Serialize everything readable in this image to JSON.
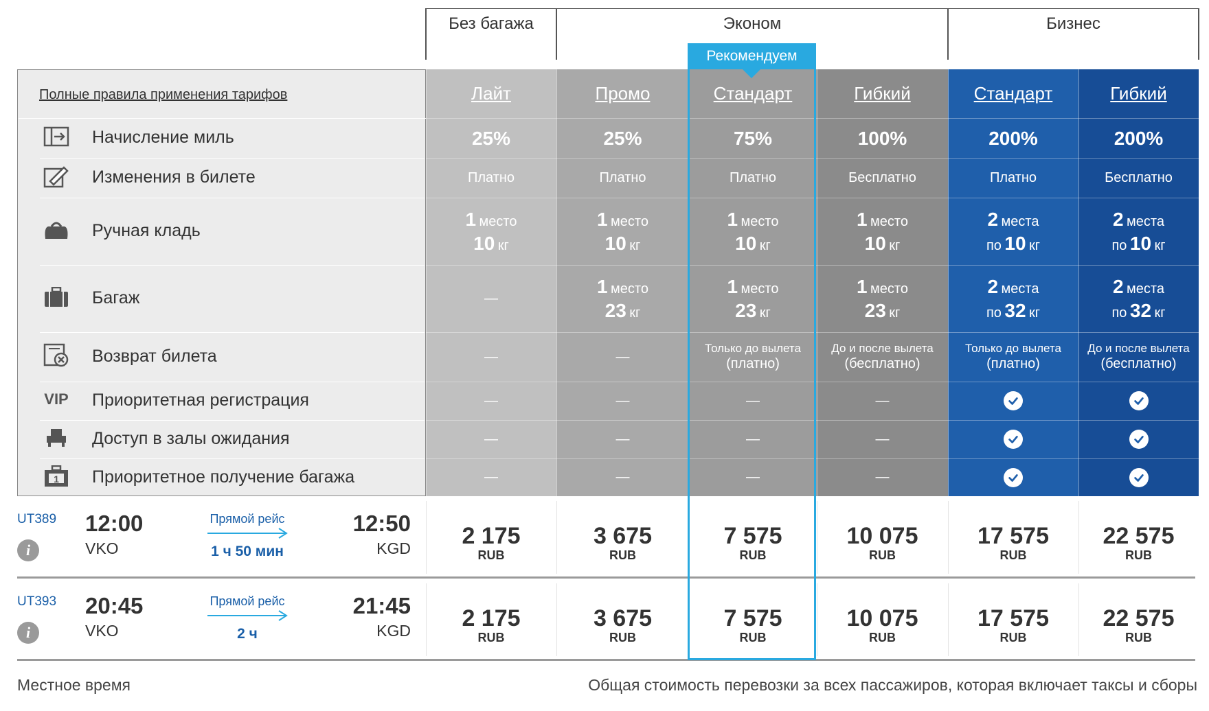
{
  "groups": {
    "no_bag": "Без багажа",
    "economy": "Эконом",
    "business": "Бизнес"
  },
  "recommended": "Рекомендуем",
  "rules_link": "Полные правила применения тарифов",
  "fares": [
    {
      "name": "Лайт",
      "color": "#c0c0c0"
    },
    {
      "name": "Промо",
      "color": "#a9a9a9"
    },
    {
      "name": "Стандарт",
      "color": "#9c9c9c"
    },
    {
      "name": "Гибкий",
      "color": "#8b8b8b"
    },
    {
      "name": "Стандарт",
      "color": "#1f5fab"
    },
    {
      "name": "Гибкий",
      "color": "#174d96"
    }
  ],
  "features": [
    {
      "label": "Начисление миль",
      "icon": "miles-icon"
    },
    {
      "label": "Изменения в билете",
      "icon": "edit-ticket-icon"
    },
    {
      "label": "Ручная кладь",
      "icon": "handbag-icon"
    },
    {
      "label": "Багаж",
      "icon": "suitcase-icon"
    },
    {
      "label": "Возврат билета",
      "icon": "refund-icon"
    },
    {
      "label": "Приоритетная регистрация",
      "icon": "vip-icon",
      "icon_text": "VIP"
    },
    {
      "label": "Доступ в залы ожидания",
      "icon": "lounge-icon"
    },
    {
      "label": "Приоритетное получение багажа",
      "icon": "priority-baggage-icon"
    }
  ],
  "cells": {
    "miles": [
      "25%",
      "25%",
      "75%",
      "100%",
      "200%",
      "200%"
    ],
    "changes": [
      "Платно",
      "Платно",
      "Платно",
      "Бесплатно",
      "Платно",
      "Бесплатно"
    ],
    "hand": [
      {
        "n": "1",
        "u": "место",
        "pre": "",
        "w": "10",
        "wu": "кг"
      },
      {
        "n": "1",
        "u": "место",
        "pre": "",
        "w": "10",
        "wu": "кг"
      },
      {
        "n": "1",
        "u": "место",
        "pre": "",
        "w": "10",
        "wu": "кг"
      },
      {
        "n": "1",
        "u": "место",
        "pre": "",
        "w": "10",
        "wu": "кг"
      },
      {
        "n": "2",
        "u": "места",
        "pre": "по",
        "w": "10",
        "wu": "кг"
      },
      {
        "n": "2",
        "u": "места",
        "pre": "по",
        "w": "10",
        "wu": "кг"
      }
    ],
    "baggage": [
      null,
      {
        "n": "1",
        "u": "место",
        "pre": "",
        "w": "23",
        "wu": "кг"
      },
      {
        "n": "1",
        "u": "место",
        "pre": "",
        "w": "23",
        "wu": "кг"
      },
      {
        "n": "1",
        "u": "место",
        "pre": "",
        "w": "23",
        "wu": "кг"
      },
      {
        "n": "2",
        "u": "места",
        "pre": "по",
        "w": "32",
        "wu": "кг"
      },
      {
        "n": "2",
        "u": "места",
        "pre": "по",
        "w": "32",
        "wu": "кг"
      }
    ],
    "refund": [
      null,
      null,
      {
        "a": "Только до вылета",
        "b": "(платно)"
      },
      {
        "a": "До и после вылета",
        "b": "(бесплатно)"
      },
      {
        "a": "Только до вылета",
        "b": "(платно)"
      },
      {
        "a": "До и после вылета",
        "b": "(бесплатно)"
      }
    ],
    "priority_checkin": [
      false,
      false,
      false,
      false,
      true,
      true
    ],
    "lounge": [
      false,
      false,
      false,
      false,
      true,
      true
    ],
    "priority_baggage": [
      false,
      false,
      false,
      false,
      true,
      true
    ],
    "dash": "—"
  },
  "flights": [
    {
      "number": "UT389",
      "dep_time": "12:00",
      "dep_airport": "VKO",
      "type": "Прямой рейс",
      "duration": "1 ч 50 мин",
      "arr_time": "12:50",
      "arr_airport": "KGD",
      "prices": [
        "2 175",
        "3 675",
        "7 575",
        "10 075",
        "17 575",
        "22 575"
      ],
      "currency": "RUB"
    },
    {
      "number": "UT393",
      "dep_time": "20:45",
      "dep_airport": "VKO",
      "type": "Прямой рейс",
      "duration": "2 ч",
      "arr_time": "21:45",
      "arr_airport": "KGD",
      "prices": [
        "2 175",
        "3 675",
        "7 575",
        "10 075",
        "17 575",
        "22 575"
      ],
      "currency": "RUB"
    }
  ],
  "footer": {
    "left": "Местное время",
    "right": "Общая стоимость перевозки за всех пассажиров, которая включает таксы и сборы"
  },
  "colors": {
    "accent": "#29a9e0",
    "link_blue": "#1a5fa8"
  }
}
